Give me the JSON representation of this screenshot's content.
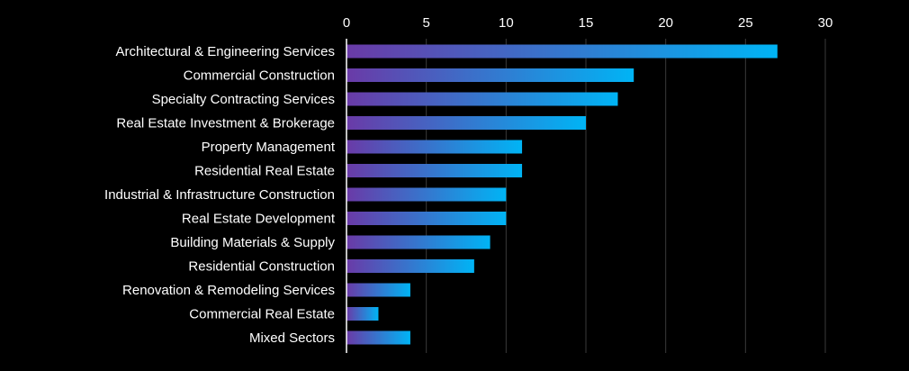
{
  "chart_data": {
    "type": "bar",
    "orientation": "horizontal",
    "categories": [
      "Architectural & Engineering Services",
      "Commercial Construction",
      "Specialty Contracting Services",
      "Real Estate Investment & Brokerage",
      "Property Management",
      "Residential Real Estate",
      "Industrial & Infrastructure Construction",
      "Real Estate Development",
      "Building Materials & Supply",
      "Residential Construction",
      "Renovation & Remodeling Services",
      "Commercial Real Estate",
      "Mixed Sectors"
    ],
    "values": [
      27,
      18,
      17,
      15,
      11,
      11,
      10,
      10,
      9,
      8,
      4,
      2,
      4
    ],
    "xlim": [
      0,
      30
    ],
    "xticks": [
      "0",
      "5",
      "10",
      "15",
      "20",
      "25",
      "30"
    ],
    "x_axis_position": "top",
    "grid": true,
    "legend": false,
    "title": "",
    "xlabel": "",
    "ylabel": "",
    "colors": {
      "background": "#000000",
      "bar_gradient_start": "#6a3aa7",
      "bar_gradient_end": "#00b4f5",
      "grid": "#3a3a3a",
      "axis": "#ffffff",
      "text": "#ffffff"
    }
  }
}
